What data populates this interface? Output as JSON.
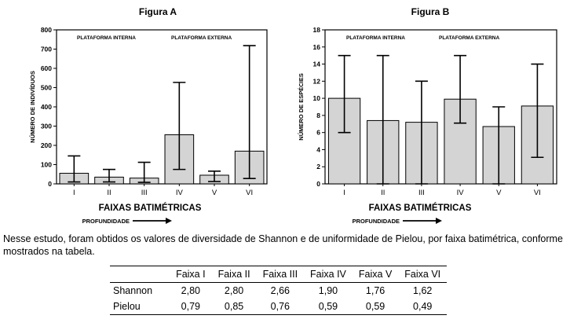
{
  "chart_data": [
    {
      "type": "bar",
      "title": "Figura A",
      "ylabel": "NÚMERO DE INDIVÍDUOS",
      "xlabel": "FAIXAS BATIMÉTRICAS",
      "xsublabel": "PROFUNDIDADE",
      "categories": [
        "I",
        "II",
        "III",
        "IV",
        "V",
        "VI"
      ],
      "values": [
        55,
        35,
        30,
        255,
        45,
        170
      ],
      "error_low": [
        10,
        10,
        8,
        75,
        12,
        28
      ],
      "error_high": [
        145,
        75,
        112,
        527,
        66,
        718
      ],
      "ylim": [
        0,
        800
      ],
      "yticks": [
        0,
        100,
        200,
        300,
        400,
        500,
        600,
        700,
        800
      ],
      "annotations": [
        "PLATAFORMA INTERNA",
        "PLATAFORMA EXTERNA"
      ],
      "grid": false
    },
    {
      "type": "bar",
      "title": "Figura B",
      "ylabel": "NÚMERO DE ESPÉCIES",
      "xlabel": "FAIXAS BATIMÉTRICAS",
      "xsublabel": "PROFUNDIDADE",
      "categories": [
        "I",
        "II",
        "III",
        "IV",
        "V",
        "VI"
      ],
      "values": [
        10,
        7.4,
        7.2,
        9.9,
        6.7,
        9.1
      ],
      "error_low": [
        6,
        0,
        0,
        7.1,
        0,
        3.1
      ],
      "error_high": [
        15,
        15,
        12,
        15,
        9,
        14
      ],
      "ylim": [
        0,
        18
      ],
      "yticks": [
        0,
        2,
        4,
        6,
        8,
        10,
        12,
        14,
        16,
        18
      ],
      "annotations": [
        "PLATAFORMA INTERNA",
        "PLATAFORMA EXTERNA"
      ],
      "grid": false
    }
  ],
  "paragraph": "Nesse estudo, foram obtidos os valores de diversidade de Shannon e de uniformidade de Pielou, por faixa batimétrica, conforme mostrados na tabela.",
  "table": {
    "headers": [
      "Faixa I",
      "Faixa II",
      "Faixa III",
      "Faixa IV",
      "Faixa V",
      "Faixa VI"
    ],
    "rows": [
      {
        "label": "Shannon",
        "values": [
          "2,80",
          "2,80",
          "2,66",
          "1,90",
          "1,76",
          "1,62"
        ]
      },
      {
        "label": "Pielou",
        "values": [
          "0,79",
          "0,85",
          "0,76",
          "0,59",
          "0,59",
          "0,49"
        ]
      }
    ]
  }
}
